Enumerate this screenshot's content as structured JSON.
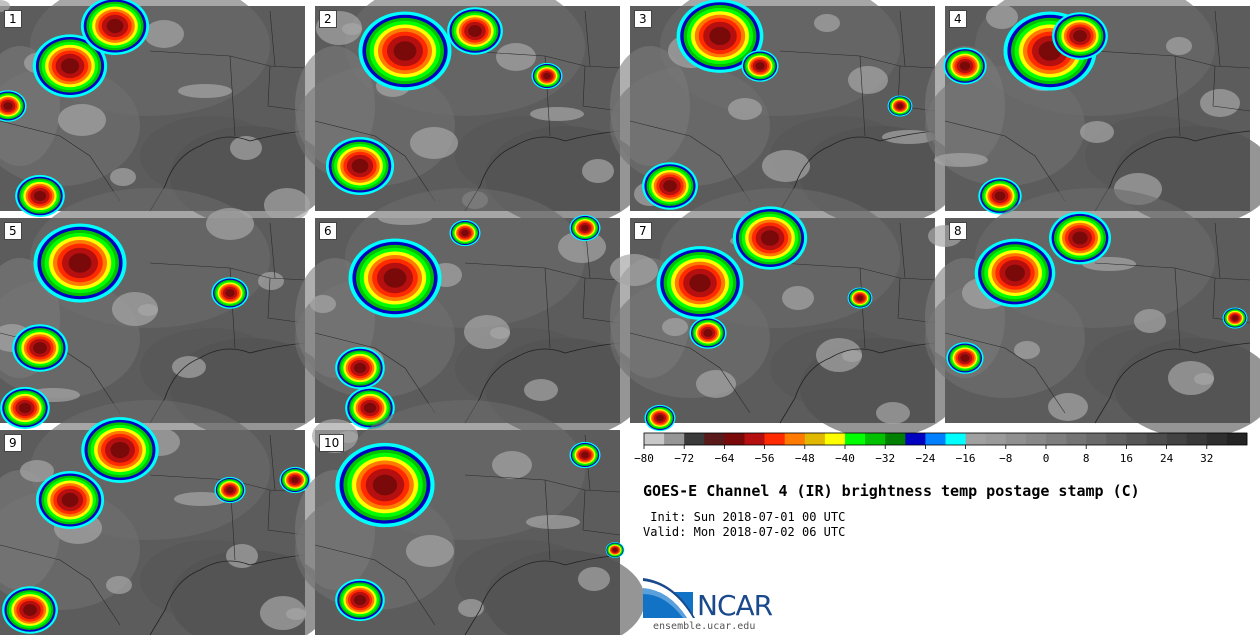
{
  "title": "GOES-E Channel 4 (IR) brightness temp postage stamp (C)",
  "init_label": " Init:",
  "init_time": "Sun 2018-07-01 00 UTC",
  "valid_label": "Valid:",
  "valid_time": "Mon 2018-07-02 06 UTC",
  "logo_text": "NCAR",
  "logo_url": "ensemble.ucar.edu",
  "panels": [
    "1",
    "2",
    "3",
    "4",
    "5",
    "6",
    "7",
    "8",
    "9",
    "10"
  ],
  "colorbar": {
    "min": -80,
    "max": 40,
    "step": 4,
    "tick_labels": [
      "−80",
      "−72",
      "−64",
      "−56",
      "−48",
      "−40",
      "−32",
      "−24",
      "−16",
      "−8",
      "0",
      "8",
      "16",
      "24",
      "32"
    ],
    "tick_values": [
      -80,
      -72,
      -64,
      -56,
      -48,
      -40,
      -32,
      -24,
      -16,
      -8,
      0,
      8,
      16,
      24,
      32
    ],
    "colors": [
      "#c8c8c8",
      "#969696",
      "#3a3a3a",
      "#5a1a1a",
      "#7a0a0a",
      "#b50f0f",
      "#ff2a00",
      "#ff7a00",
      "#e0b800",
      "#ffff00",
      "#00ff00",
      "#00c000",
      "#008000",
      "#0000c0",
      "#0080ff",
      "#00ffff",
      "#a0a0a0",
      "#9a9a9a",
      "#909090",
      "#888888",
      "#7e7e7e",
      "#747474",
      "#6a6a6a",
      "#606060",
      "#565656",
      "#4c4c4c",
      "#424242",
      "#383838",
      "#2e2e2e",
      "#242424"
    ]
  }
}
